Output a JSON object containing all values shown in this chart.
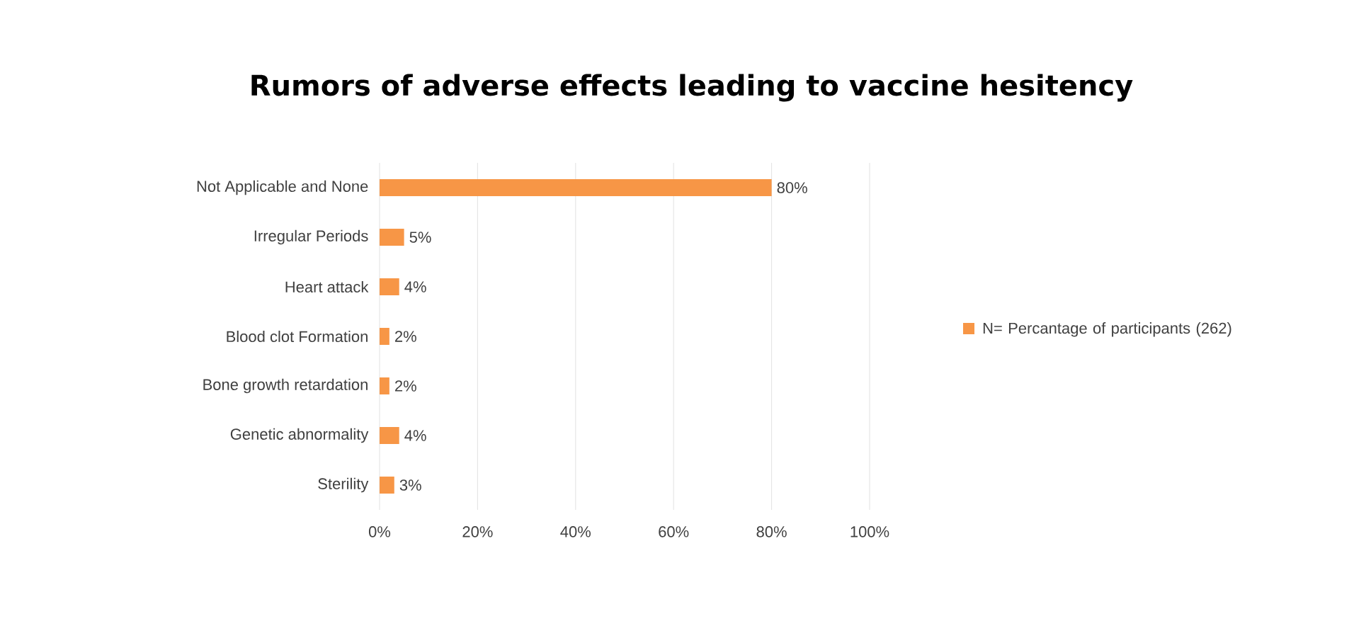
{
  "chart_data": {
    "type": "bar",
    "orientation": "horizontal",
    "title": "Rumors of adverse effects leading to vaccine hesitency",
    "categories": [
      "Not Applicable and None",
      "Irregular Periods",
      "Heart attack",
      "Blood clot Formation",
      "Bone growth retardation",
      "Genetic abnormality",
      "Sterility"
    ],
    "series": [
      {
        "name": "N= Percantage of participants (262)",
        "color": "#f79646",
        "values": [
          80,
          5,
          4,
          2,
          2,
          4,
          3
        ],
        "value_labels": [
          "80%",
          "5%",
          "4%",
          "2%",
          "2%",
          "4%",
          "3%"
        ]
      }
    ],
    "xlim": [
      0,
      100
    ],
    "xticks": [
      {
        "value": 0,
        "label": "0%"
      },
      {
        "value": 20,
        "label": "20%"
      },
      {
        "value": 40,
        "label": "40%"
      },
      {
        "value": 60,
        "label": "60%"
      },
      {
        "value": 80,
        "label": "80%"
      },
      {
        "value": 100,
        "label": "100%"
      }
    ],
    "grid": "x",
    "legend": "right"
  }
}
